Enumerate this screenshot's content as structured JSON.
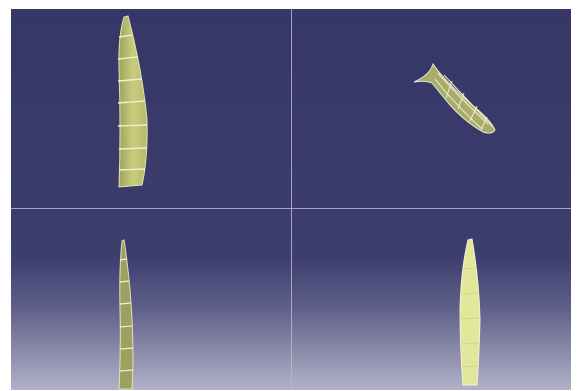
{
  "app": {
    "description_free": true
  },
  "viewports": [
    {
      "id": "front",
      "icon": "blade-part"
    },
    {
      "id": "isometric",
      "icon": "blade-part"
    },
    {
      "id": "side",
      "icon": "blade-part"
    },
    {
      "id": "top",
      "icon": "blade-part"
    }
  ],
  "colors": {
    "background_top": "#363766",
    "background_bottom": "#b2b1c7",
    "part_fill": "#c8cc7a",
    "part_fill_light": "#e4ea9c",
    "part_edge": "#f3f5dc",
    "split_line": "#b7b7cc"
  }
}
